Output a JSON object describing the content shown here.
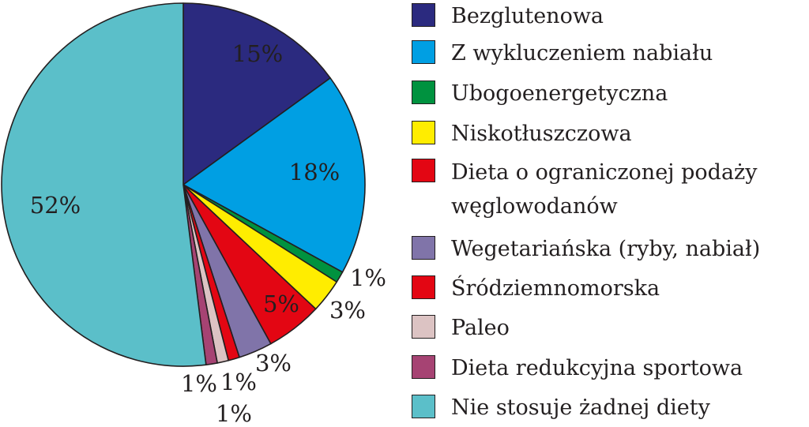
{
  "chart_data": {
    "type": "pie",
    "slices": [
      {
        "label": "Bezglutenowa",
        "value": 15,
        "value_label": "15%",
        "color": "#2b2a7f"
      },
      {
        "label": "Z wykluczeniem nabiału",
        "value": 18,
        "value_label": "18%",
        "color": "#009fe3"
      },
      {
        "label": "Ubogoenergetyczna",
        "value": 1,
        "value_label": "1%",
        "color": "#00923f"
      },
      {
        "label": "Niskotłuszczowa",
        "value": 3,
        "value_label": "3%",
        "color": "#ffed00"
      },
      {
        "label": "Dieta o ograniczonej podaży węglowodanów",
        "value": 5,
        "value_label": "5%",
        "color": "#e30613"
      },
      {
        "label": "Wegetariańska (ryby, nabiał)",
        "value": 3,
        "value_label": "3%",
        "color": "#8074a9"
      },
      {
        "label": "Śródziemnomorska",
        "value": 1,
        "value_label": "1%",
        "color": "#e30613"
      },
      {
        "label": "Paleo",
        "value": 1,
        "value_label": "1%",
        "color": "#dcc3c3"
      },
      {
        "label": "Dieta redukcyjna sportowa",
        "value": 1,
        "value_label": "1%",
        "color": "#a64373"
      },
      {
        "label": "Nie stosuje żadnej diety",
        "value": 52,
        "value_label": "52%",
        "color": "#5bbfc9"
      }
    ],
    "legend_position": "right"
  }
}
